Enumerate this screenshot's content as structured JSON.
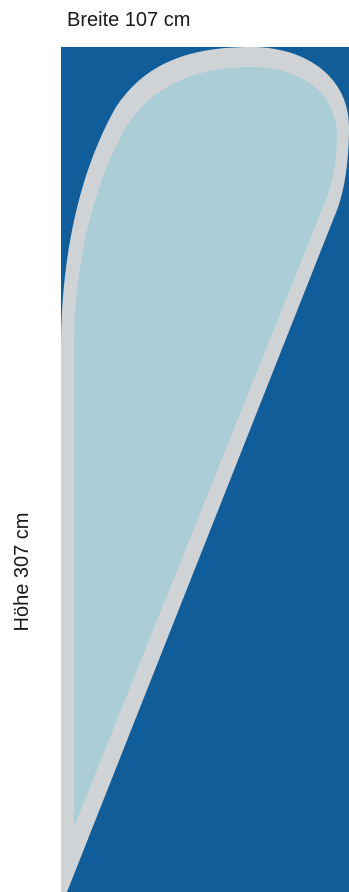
{
  "labels": {
    "width": "Breite 107 cm",
    "height": "Höhe 307 cm"
  },
  "colors": {
    "background": "#105d9a",
    "border": "#d0d3d6",
    "fill": "#aacdd6"
  }
}
